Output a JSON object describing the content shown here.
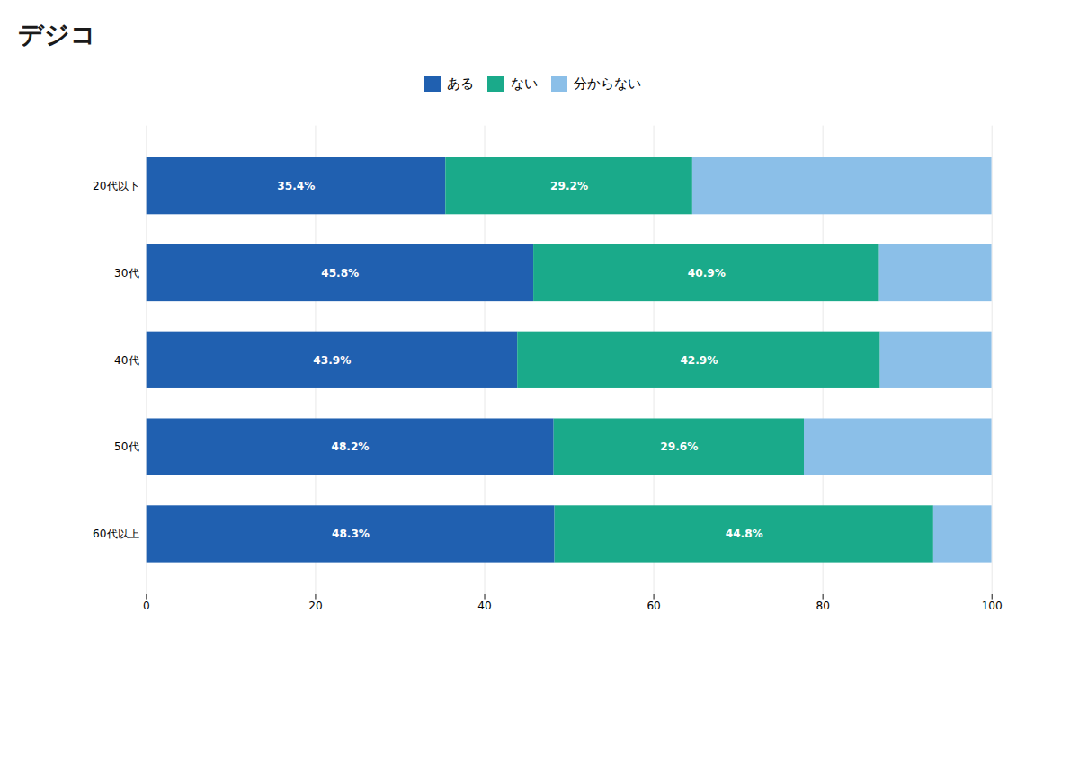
{
  "chart_data": {
    "type": "bar",
    "orientation": "horizontal",
    "stacked": true,
    "annotations": [
      "デジコ"
    ],
    "categories": [
      "60代以上",
      "50代",
      "40代",
      "30代",
      "20代以下"
    ],
    "series": [
      {
        "name": "ある",
        "color": "#2060b0",
        "values": [
          48.3,
          48.2,
          43.9,
          45.8,
          35.4
        ],
        "data_labels": true,
        "value_labels": [
          "48.3%",
          "48.2%",
          "43.9%",
          "45.8%",
          "35.4%"
        ]
      },
      {
        "name": "ない",
        "color": "#1aaa8a",
        "values": [
          44.8,
          29.6,
          42.9,
          40.9,
          29.2
        ],
        "data_labels": true,
        "value_labels": [
          "44.8%",
          "29.6%",
          "42.9%",
          "40.9%",
          "29.2%"
        ]
      },
      {
        "name": "分からない",
        "color": "#8bbfe8",
        "values": [
          6.9,
          22.2,
          13.2,
          13.3,
          35.4
        ],
        "data_labels": false
      }
    ],
    "xlim": [
      0,
      100
    ],
    "xticks": [
      0,
      20,
      40,
      60,
      80,
      100
    ],
    "grid": true,
    "legend": "top"
  }
}
